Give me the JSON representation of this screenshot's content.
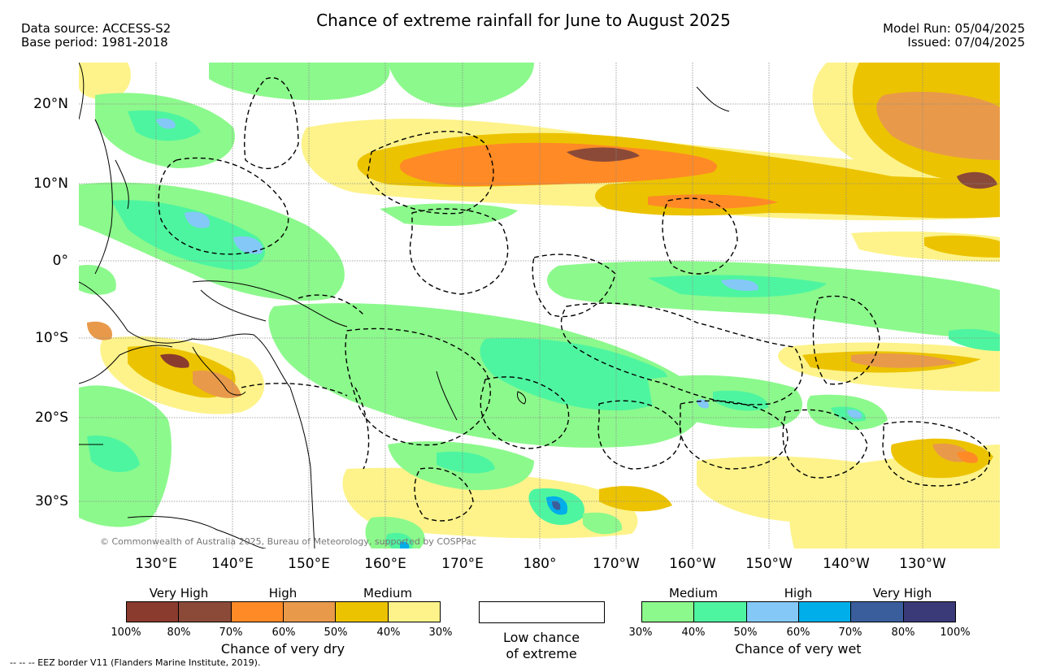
{
  "header": {
    "title": "Chance of extreme rainfall for June to August 2025",
    "data_source": "Data source: ACCESS-S2",
    "base_period": "Base period: 1981-2018",
    "model_run": "Model Run: 05/04/2025",
    "issued": "Issued: 07/04/2025"
  },
  "map": {
    "lat_labels": [
      "20°N",
      "10°N",
      "0°",
      "10°S",
      "20°S",
      "30°S"
    ],
    "lon_labels": [
      "130°E",
      "140°E",
      "150°E",
      "160°E",
      "170°E",
      "180°",
      "170°W",
      "160°W",
      "150°W",
      "140°W",
      "130°W"
    ],
    "copyright": "© Commonwealth of Australia 2025, Bureau of Meteorology, supported by COSPPac"
  },
  "legend": {
    "dry": {
      "levels": [
        "Very High",
        "High",
        "Medium"
      ],
      "ticks": [
        "100%",
        "80%",
        "70%",
        "60%",
        "50%",
        "40%",
        "30%"
      ],
      "caption": "Chance of very dry",
      "colors": [
        "#8b3a2e",
        "#8b4a38",
        "#ff8a26",
        "#e89a4a",
        "#ecc300",
        "#fdf38a"
      ]
    },
    "low": {
      "caption_line1": "Low chance",
      "caption_line2": "of extreme"
    },
    "wet": {
      "levels": [
        "Medium",
        "High",
        "Very High"
      ],
      "ticks": [
        "30%",
        "40%",
        "50%",
        "60%",
        "70%",
        "80%",
        "100%"
      ],
      "caption": "Chance of very wet",
      "colors": [
        "#8cf98c",
        "#4ef5a0",
        "#84c8f8",
        "#00aeea",
        "#3a5e9c",
        "#3a3a78"
      ]
    }
  },
  "footer": {
    "eez_note": "--  --  -- EEZ border V11 (Flanders Marine Institute, 2019)."
  }
}
